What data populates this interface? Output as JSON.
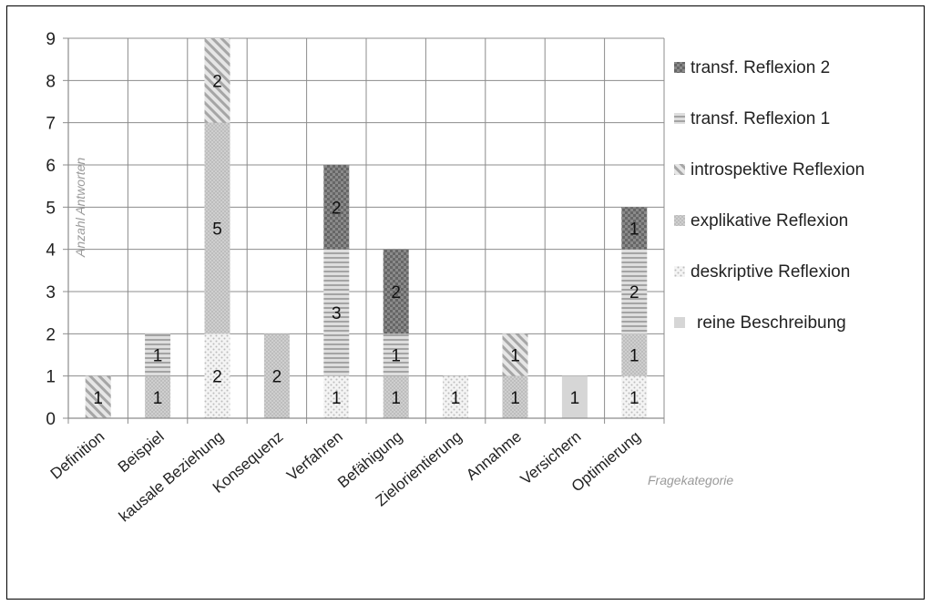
{
  "chart_data": {
    "type": "bar",
    "stacked": true,
    "title": "",
    "xlabel": "Fragekategorie",
    "ylabel": "Anzahl Antworten",
    "ylim": [
      0,
      9
    ],
    "yticks": [
      0,
      1,
      2,
      3,
      4,
      5,
      6,
      7,
      8,
      9
    ],
    "grid": true,
    "legend_position": "right",
    "categories": [
      "Definition",
      "Beispiel",
      "kausale Beziehung",
      "Konsequenz",
      "Verfahren",
      "Befähigung",
      "Zielorientierung",
      "Annahme",
      "Versichern",
      "Optimierung"
    ],
    "series": [
      {
        "name": "reine Beschreibung",
        "pattern": "solid-light",
        "color": "#d4d4d4",
        "values": [
          0,
          0,
          0,
          0,
          0,
          0,
          0,
          0,
          1,
          0
        ]
      },
      {
        "name": "deskriptive Reflexion",
        "pattern": "dots-sparse",
        "color": "#c8c8c8",
        "values": [
          0,
          0,
          2,
          0,
          1,
          0,
          1,
          0,
          0,
          1
        ]
      },
      {
        "name": "explikative Reflexion",
        "pattern": "dots-dense",
        "color": "#bdbdbd",
        "values": [
          0,
          1,
          5,
          2,
          0,
          1,
          0,
          1,
          0,
          1
        ]
      },
      {
        "name": "introspektive Reflexion",
        "pattern": "diagonal",
        "color": "#9e9e9e",
        "values": [
          1,
          0,
          2,
          0,
          0,
          0,
          0,
          1,
          0,
          0
        ]
      },
      {
        "name": "transf. Reflexion 1",
        "pattern": "horizontal",
        "color": "#a8a8a8",
        "values": [
          0,
          1,
          0,
          0,
          3,
          1,
          0,
          0,
          0,
          2
        ]
      },
      {
        "name": "transf. Reflexion 2",
        "pattern": "checker-dark",
        "color": "#6e6e6e",
        "values": [
          0,
          0,
          0,
          0,
          2,
          2,
          0,
          0,
          0,
          1
        ]
      }
    ]
  }
}
